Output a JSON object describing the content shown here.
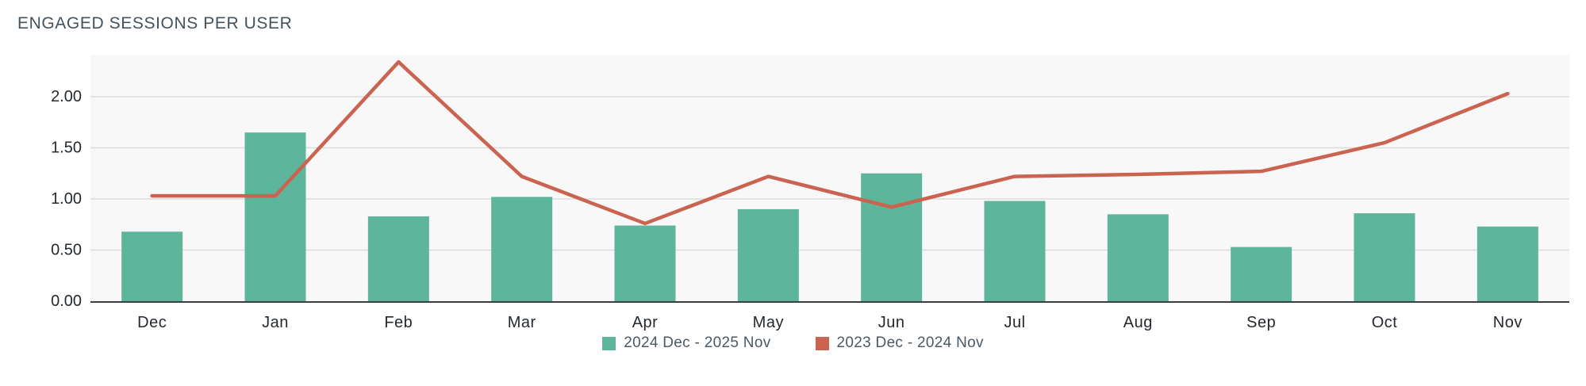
{
  "page": {
    "title": "ENGAGED SESSIONS PER USER"
  },
  "colors": {
    "bar": "#5db69b",
    "line": "#ca6350",
    "plot_bg": "#f8f8f8",
    "grid": "#dcdcdc",
    "axis": "#3a3f42",
    "title_text": "#43525d",
    "tick_text": "#24292e",
    "legend_text": "#4b5964"
  },
  "legend": {
    "items": [
      {
        "label": "2024 Dec - 2025 Nov",
        "color": "#5db69b",
        "series": "bar"
      },
      {
        "label": "2023 Dec - 2024 Nov",
        "color": "#ca6350",
        "series": "line"
      }
    ]
  },
  "chart_data": {
    "type": "bar",
    "subtype": "bar-line-combo",
    "title": "ENGAGED SESSIONS PER USER",
    "categories": [
      "Dec",
      "Jan",
      "Feb",
      "Mar",
      "Apr",
      "May",
      "Jun",
      "Jul",
      "Aug",
      "Sep",
      "Oct",
      "Nov"
    ],
    "series": [
      {
        "name": "2024 Dec - 2025 Nov",
        "type": "bar",
        "color": "#5db69b",
        "values": [
          0.68,
          1.65,
          0.83,
          1.02,
          0.74,
          0.9,
          1.25,
          0.98,
          0.85,
          0.53,
          0.86,
          0.73
        ]
      },
      {
        "name": "2023 Dec - 2024 Nov",
        "type": "line",
        "color": "#ca6350",
        "values": [
          1.03,
          1.03,
          2.34,
          1.22,
          0.76,
          1.22,
          0.92,
          1.22,
          1.24,
          1.27,
          1.55,
          2.03
        ]
      }
    ],
    "xlabel": "",
    "ylabel": "",
    "y_ticks": [
      "0.00",
      "0.50",
      "1.00",
      "1.50",
      "2.00"
    ],
    "y_tick_values": [
      0,
      0.5,
      1.0,
      1.5,
      2.0
    ],
    "ylim": [
      0,
      2.41
    ],
    "grid": "horizontal",
    "legend_position": "bottom-center"
  }
}
